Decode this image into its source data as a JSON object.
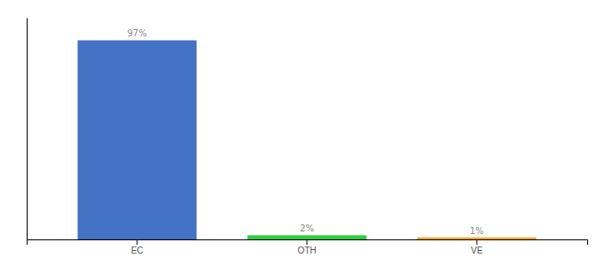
{
  "chart_data": {
    "type": "bar",
    "categories": [
      "EC",
      "OTH",
      "VE"
    ],
    "values": [
      97,
      2,
      1
    ],
    "value_labels": [
      "97%",
      "2%",
      "1%"
    ],
    "colors": [
      "#4472c4",
      "#2ecc40",
      "#f5a623"
    ],
    "ylim": [
      0,
      108
    ],
    "data_labels": true,
    "tick_labels": "x"
  }
}
